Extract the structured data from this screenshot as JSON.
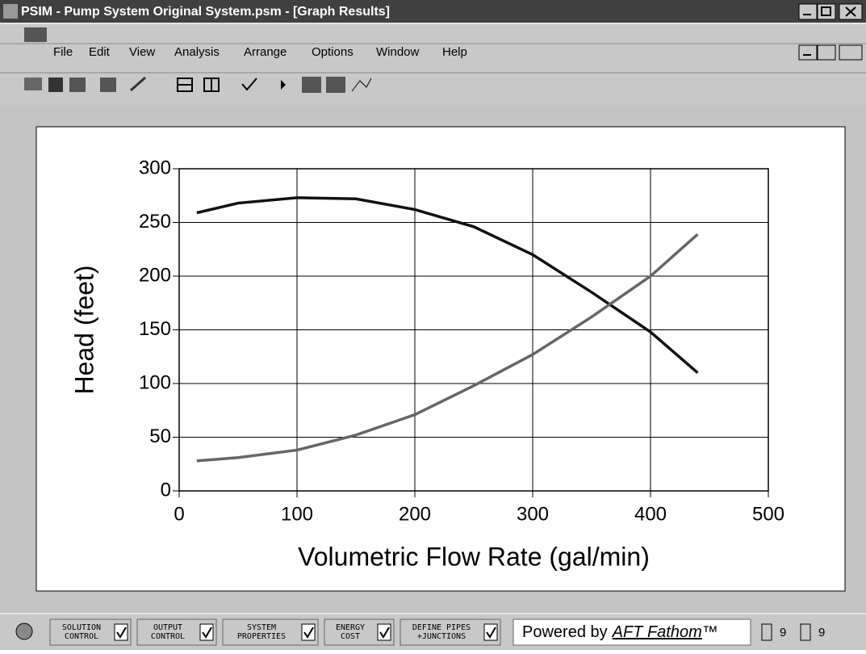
{
  "window": {
    "title": "PSIM - Pump System Original System.psm - [Graph Results]",
    "menu": [
      "File",
      "Edit",
      "View",
      "Analysis",
      "Arrange",
      "Options",
      "Window",
      "Help"
    ]
  },
  "status": {
    "buttons": [
      [
        "SOLUTION",
        "CONTROL"
      ],
      [
        "OUTPUT",
        "CONTROL"
      ],
      [
        "SYSTEM",
        "PROPERTIES"
      ],
      [
        "ENERGY",
        "COST"
      ],
      [
        "DEFINE PIPES",
        "+JUNCTIONS"
      ]
    ],
    "powered": "Powered by",
    "product": "AFT Fathom",
    "trademark": "™",
    "counts": [
      "9",
      "9"
    ]
  },
  "chart_data": {
    "type": "line",
    "xlabel": "Volumetric Flow Rate (gal/min)",
    "ylabel": "Head (feet)",
    "x": [
      15,
      50,
      100,
      150,
      200,
      250,
      300,
      350,
      400,
      440
    ],
    "series": [
      {
        "color": "#111111",
        "values": [
          259,
          268,
          273,
          272,
          262,
          246,
          220,
          185,
          148,
          110
        ]
      },
      {
        "color": "#666666",
        "values": [
          28,
          31,
          38,
          52,
          71,
          98,
          127,
          162,
          200,
          239
        ]
      }
    ],
    "xlim": [
      0,
      500
    ],
    "xticks": [
      0,
      100,
      200,
      300,
      400,
      500
    ],
    "ylim": [
      0,
      300
    ],
    "yticks": [
      0,
      50,
      100,
      150,
      200,
      250,
      300
    ],
    "grid": true
  }
}
